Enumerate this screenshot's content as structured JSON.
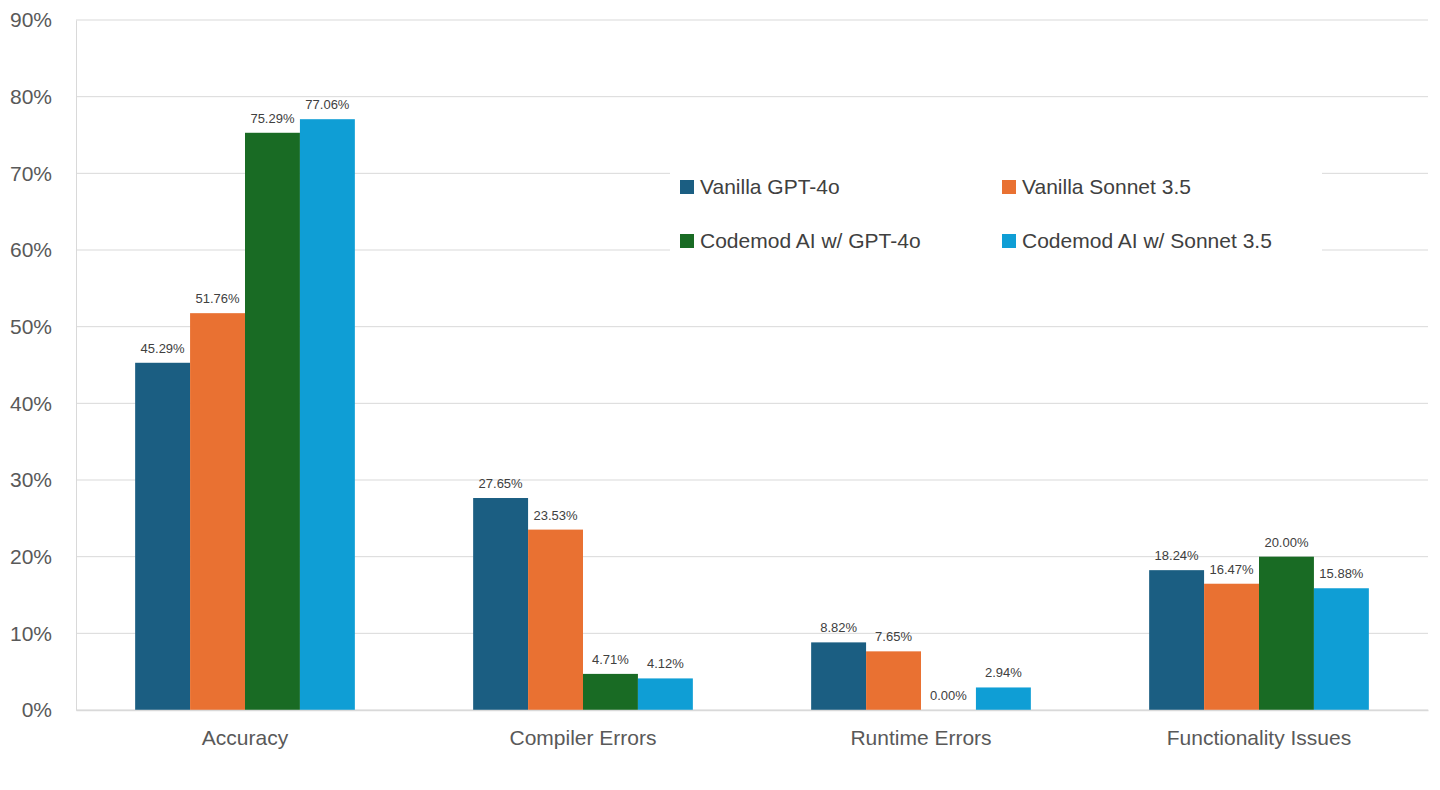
{
  "chart_data": {
    "type": "bar",
    "categories": [
      "Accuracy",
      "Compiler Errors",
      "Runtime Errors",
      "Functionality Issues"
    ],
    "series": [
      {
        "name": "Vanilla GPT-4o",
        "color": "#1b5e82",
        "values": [
          45.29,
          27.65,
          8.82,
          18.24
        ],
        "value_labels": [
          "45.29%",
          "27.65%",
          "8.82%",
          "18.24%"
        ]
      },
      {
        "name": "Vanilla Sonnet 3.5",
        "color": "#e97132",
        "values": [
          51.76,
          23.53,
          7.65,
          16.47
        ],
        "value_labels": [
          "51.76%",
          "23.53%",
          "7.65%",
          "16.47%"
        ]
      },
      {
        "name": "Codemod AI w/ GPT-4o",
        "color": "#196b24",
        "values": [
          75.29,
          4.71,
          0.0,
          20.0
        ],
        "value_labels": [
          "75.29%",
          "4.71%",
          "0.00%",
          "20.00%"
        ]
      },
      {
        "name": "Codemod AI w/ Sonnet 3.5",
        "color": "#0f9ed5",
        "values": [
          77.06,
          4.12,
          2.94,
          15.88
        ],
        "value_labels": [
          "77.06%",
          "4.12%",
          "2.94%",
          "15.88%"
        ]
      }
    ],
    "ylim": [
      0,
      90
    ],
    "yticks": [
      {
        "value": 0,
        "label": "0%"
      },
      {
        "value": 10,
        "label": "10%"
      },
      {
        "value": 20,
        "label": "20%"
      },
      {
        "value": 30,
        "label": "30%"
      },
      {
        "value": 40,
        "label": "40%"
      },
      {
        "value": 50,
        "label": "50%"
      },
      {
        "value": 60,
        "label": "60%"
      },
      {
        "value": 70,
        "label": "70%"
      },
      {
        "value": 80,
        "label": "80%"
      },
      {
        "value": 90,
        "label": "90%"
      }
    ],
    "grid": true,
    "legend": "top-right",
    "data_labels": true
  }
}
